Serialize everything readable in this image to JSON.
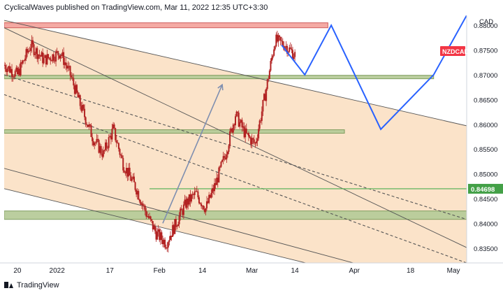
{
  "header": {
    "text": "CyclicalWaves published on TradingView.com, Mar 11, 2022 12:35 UTC+3:30"
  },
  "footer": {
    "brand": "TradingView",
    "logo_icon": "tradingview-logo-icon"
  },
  "colors": {
    "bg_fill": "#fbe0c3",
    "candle": "#b22222",
    "green_zone": "#b8cc9a",
    "green_zone_border": "#7a9a5a",
    "red_zone": "#f4a6a0",
    "red_zone_border": "#cc5555",
    "support_line": "#4caf50",
    "path": "#2962ff",
    "trend": "#555555",
    "symbol_badge": "#f23645",
    "price_badge": "#43a047"
  },
  "chart_data": {
    "type": "candlestick",
    "symbol": "NZDCAD",
    "currency": "CAD",
    "ylim": [
      0.832,
      0.882
    ],
    "y_ticks": [
      "0.83500",
      "0.84000",
      "0.84500",
      "0.85000",
      "0.85500",
      "0.86000",
      "0.86500",
      "0.87000",
      "0.87500",
      "0.88000"
    ],
    "x_ticks": [
      {
        "label": "20",
        "date": "2021-12-20"
      },
      {
        "label": "2022",
        "date": "2022-01-01"
      },
      {
        "label": "17",
        "date": "2022-01-17"
      },
      {
        "label": "Feb",
        "date": "2022-02-01"
      },
      {
        "label": "14",
        "date": "2022-02-14"
      },
      {
        "label": "Mar",
        "date": "2022-03-01"
      },
      {
        "label": "14",
        "date": "2022-03-14"
      },
      {
        "label": "Apr",
        "date": "2022-04-01"
      },
      {
        "label": "18",
        "date": "2022-04-18"
      },
      {
        "label": "May",
        "date": "2022-05-01"
      }
    ],
    "xlim": [
      "2021-12-16",
      "2022-05-05"
    ],
    "price_path": [
      [
        "2021-12-16",
        0.872
      ],
      [
        "2021-12-20",
        0.87
      ],
      [
        "2021-12-24",
        0.876
      ],
      [
        "2021-12-28",
        0.873
      ],
      [
        "2022-01-02",
        0.8745
      ],
      [
        "2022-01-05",
        0.87
      ],
      [
        "2022-01-08",
        0.864
      ],
      [
        "2022-01-12",
        0.857
      ],
      [
        "2022-01-15",
        0.854
      ],
      [
        "2022-01-18",
        0.859
      ],
      [
        "2022-01-21",
        0.852
      ],
      [
        "2022-01-25",
        0.847
      ],
      [
        "2022-01-28",
        0.842
      ],
      [
        "2022-01-31",
        0.838
      ],
      [
        "2022-02-03",
        0.836
      ],
      [
        "2022-02-06",
        0.84
      ],
      [
        "2022-02-09",
        0.844
      ],
      [
        "2022-02-12",
        0.846
      ],
      [
        "2022-02-15",
        0.843
      ],
      [
        "2022-02-18",
        0.848
      ],
      [
        "2022-02-21",
        0.854
      ],
      [
        "2022-02-24",
        0.862
      ],
      [
        "2022-02-27",
        0.858
      ],
      [
        "2022-03-02",
        0.856
      ],
      [
        "2022-03-05",
        0.866
      ],
      [
        "2022-03-08",
        0.877
      ],
      [
        "2022-03-11",
        0.876
      ],
      [
        "2022-03-14",
        0.874
      ]
    ],
    "volatility": 0.0012,
    "projection": [
      [
        "2022-03-10",
        0.876
      ],
      [
        "2022-03-17",
        0.87
      ],
      [
        "2022-03-25",
        0.88
      ],
      [
        "2022-04-09",
        0.859
      ],
      [
        "2022-04-25",
        0.87
      ],
      [
        "2022-05-05",
        0.882
      ]
    ],
    "arrow": {
      "from": [
        "2022-02-02",
        0.84
      ],
      "to": [
        "2022-02-20",
        0.868
      ]
    },
    "zones": [
      {
        "kind": "red",
        "from": "2021-12-16",
        "to": "2022-03-24",
        "ylow": 0.8795,
        "yhigh": 0.8805
      },
      {
        "kind": "green",
        "from": "2021-12-16",
        "to": "2022-04-25",
        "ylow": 0.8692,
        "yhigh": 0.8699
      },
      {
        "kind": "green",
        "from": "2021-12-16",
        "to": "2022-03-29",
        "ylow": 0.8582,
        "yhigh": 0.8589
      },
      {
        "kind": "green",
        "from": "2021-12-16",
        "to": "2022-05-05",
        "ylow": 0.8408,
        "yhigh": 0.8425
      }
    ],
    "support_level": {
      "value": 0.84698,
      "label": "0.84698",
      "from": "2022-01-29"
    },
    "trendlines": [
      {
        "style": "solid",
        "points": [
          [
            "2021-12-16",
            0.881
          ],
          [
            "2022-05-05",
            0.8597
          ]
        ]
      },
      {
        "style": "solid",
        "points": [
          [
            "2021-12-16",
            0.8795
          ],
          [
            "2022-05-05",
            0.8351
          ]
        ]
      },
      {
        "style": "solid",
        "points": [
          [
            "2021-12-16",
            0.8511
          ],
          [
            "2022-05-05",
            0.8258
          ]
        ]
      },
      {
        "style": "solid",
        "points": [
          [
            "2021-12-16",
            0.847
          ],
          [
            "2022-05-05",
            0.824
          ]
        ]
      },
      {
        "style": "dashed",
        "points": [
          [
            "2021-12-16",
            0.87
          ],
          [
            "2022-05-05",
            0.8408
          ]
        ]
      },
      {
        "style": "dashed",
        "points": [
          [
            "2021-12-16",
            0.866
          ],
          [
            "2022-05-05",
            0.832
          ]
        ]
      }
    ]
  }
}
